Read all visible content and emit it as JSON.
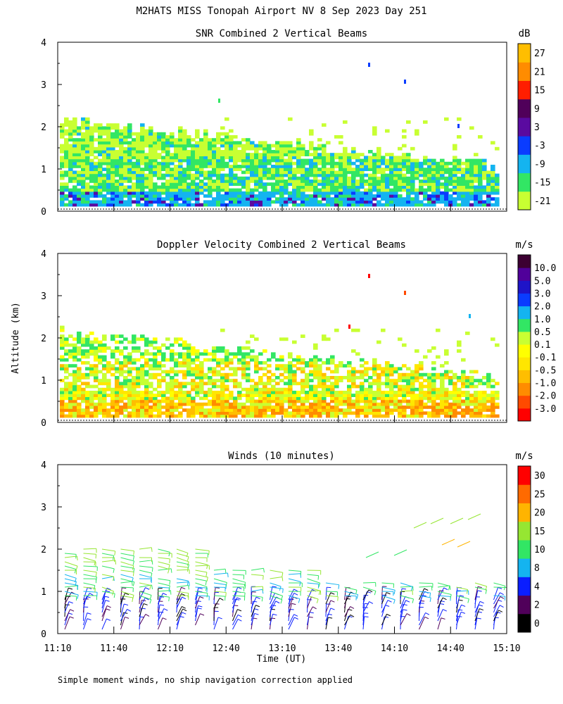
{
  "header": {
    "title": "M2HATS MISS Tonopah Airport NV   8 Sep 2023 Day 251",
    "yaxis_label": "Altitude (km)",
    "xaxis_label": "Time (UT)",
    "footnote": "Simple moment winds, no ship navigation correction applied"
  },
  "x_ticks": [
    "11:10",
    "11:40",
    "12:10",
    "12:40",
    "13:10",
    "13:40",
    "14:10",
    "14:40",
    "15:10"
  ],
  "colors": {
    "snr": [
      "#c8ff32",
      "#32e664",
      "#14b4f0",
      "#0a3cff",
      "#5a0aa0",
      "#50005a",
      "#ff1e00",
      "#ff8c00",
      "#ffbe00"
    ],
    "vel": [
      "#ff0000",
      "#ff4a00",
      "#ff8c00",
      "#ffbe00",
      "#ffe600",
      "#ffff00",
      "#c8ff32",
      "#32e664",
      "#14b4f0",
      "#0a3cff",
      "#1e14c8",
      "#50009a",
      "#3c0032"
    ],
    "wind": [
      "#000000",
      "#50005a",
      "#0a1eff",
      "#14b4f0",
      "#32e664",
      "#96e632",
      "#ffb400",
      "#ff6a00",
      "#ff0000"
    ]
  },
  "chart_data": [
    {
      "type": "heatmap",
      "title": "SNR Combined 2 Vertical Beams",
      "unit": "dB",
      "ylabel": "Altitude (km)",
      "xlabel": "Time (UT)",
      "x_range": [
        "11:10",
        "15:10"
      ],
      "ylim": [
        0,
        4
      ],
      "y_ticks": [
        "0",
        "1",
        "2",
        "3",
        "4"
      ],
      "colorbar_labels": [
        "-21",
        "-15",
        "-9",
        "-3",
        "3",
        "9",
        "15",
        "21",
        "27"
      ],
      "layers": [
        {
          "from_km": 0.1,
          "to_km": 0.45,
          "dominant": "-9",
          "secondary": "-3"
        },
        {
          "from_km": 0.45,
          "to_km": 1.2,
          "dominant": "-15",
          "secondary": "-21"
        },
        {
          "from_km": 1.2,
          "to_km": 2.2,
          "dominant": "-21",
          "secondary": "-15"
        }
      ]
    },
    {
      "type": "heatmap",
      "title": "Doppler Velocity Combined 2 Vertical Beams",
      "unit": "m/s",
      "ylabel": "Altitude (km)",
      "xlabel": "Time (UT)",
      "x_range": [
        "11:10",
        "15:10"
      ],
      "ylim": [
        0,
        4
      ],
      "y_ticks": [
        "0",
        "1",
        "2",
        "3",
        "4"
      ],
      "colorbar_labels": [
        "-3.0",
        "-2.0",
        "-1.0",
        "-0.5",
        "-0.1",
        "0.1",
        "0.5",
        "1.0",
        "2.0",
        "3.0",
        "5.0",
        "10.0"
      ],
      "layers": [
        {
          "from_km": 0.1,
          "to_km": 0.5,
          "dominant": "-0.5",
          "secondary": "-1.0"
        },
        {
          "from_km": 0.5,
          "to_km": 1.4,
          "dominant": "-0.1",
          "secondary": "0.1"
        },
        {
          "from_km": 1.4,
          "to_km": 2.1,
          "dominant": "0.1",
          "secondary": "0.5"
        }
      ]
    },
    {
      "type": "scatter",
      "title": "Winds (10 minutes)",
      "unit": "m/s",
      "ylabel": "Altitude (km)",
      "xlabel": "Time (UT)",
      "x_range": [
        "11:10",
        "15:10"
      ],
      "ylim": [
        0,
        4
      ],
      "y_ticks": [
        "0",
        "1",
        "2",
        "3",
        "4"
      ],
      "colorbar_labels": [
        "0",
        "2",
        "4",
        "8",
        "10",
        "15",
        "20",
        "25",
        "30"
      ],
      "profiles_every_minutes": 10,
      "low_level_speed_ms": [
        2,
        8
      ],
      "mid_level_speed_ms": [
        8,
        15
      ],
      "upper_level_speed_ms": [
        15,
        20
      ]
    }
  ]
}
